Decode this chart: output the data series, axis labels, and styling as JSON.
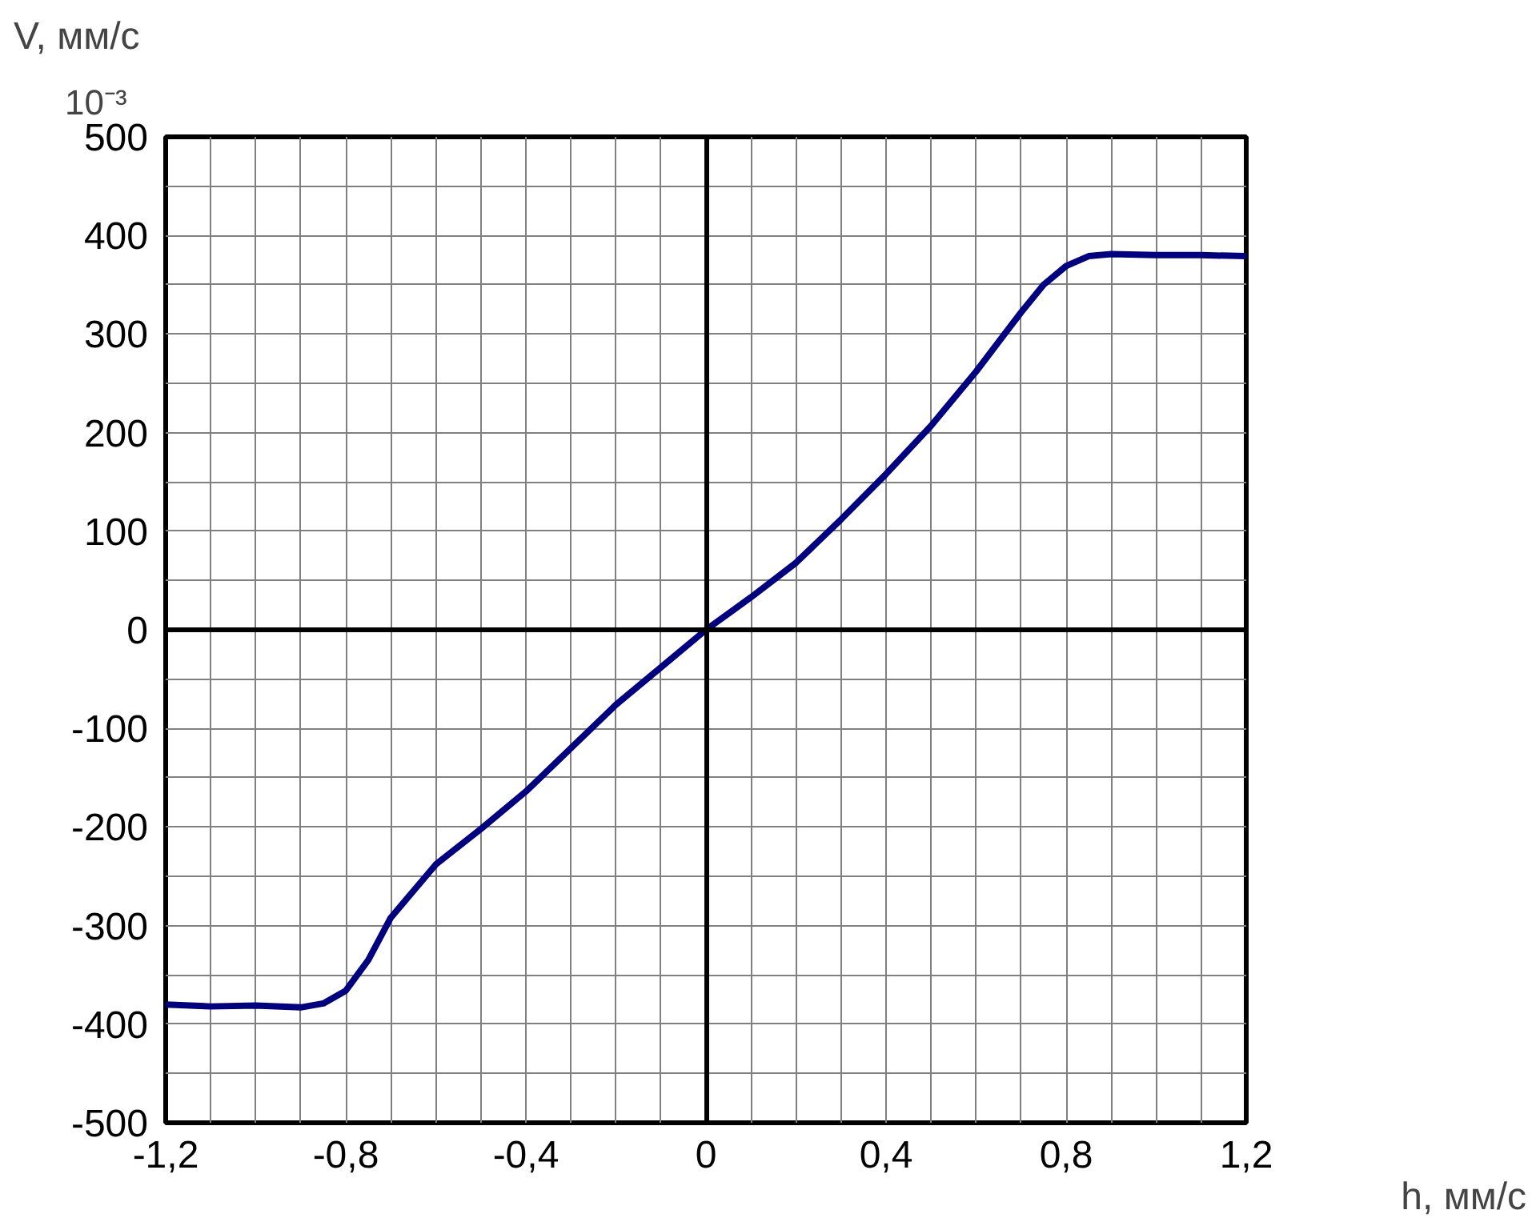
{
  "chart_data": {
    "type": "line",
    "xlabel": "h, мм/с",
    "ylabel": "V, мм/с",
    "annotations": [
      "10⁻³"
    ],
    "x": [
      -1.2,
      -1.1,
      -1.0,
      -0.9,
      -0.85,
      -0.8,
      -0.75,
      -0.7,
      -0.6,
      -0.5,
      -0.4,
      -0.3,
      -0.2,
      -0.1,
      0,
      0.1,
      0.2,
      0.3,
      0.4,
      0.5,
      0.6,
      0.7,
      0.75,
      0.8,
      0.85,
      0.9,
      1.0,
      1.1,
      1.2
    ],
    "series": [
      {
        "color": "#000080",
        "values": [
          -380,
          -382,
          -381,
          -383,
          -379,
          -366,
          -335,
          -292,
          -238,
          -202,
          -164,
          -120,
          -76,
          -38,
          0,
          33,
          68,
          112,
          158,
          207,
          262,
          322,
          350,
          369,
          379,
          381,
          380,
          380,
          379
        ]
      }
    ],
    "xlim": [
      -1.2,
      1.2
    ],
    "ylim": [
      -500,
      500
    ],
    "xticks": [
      {
        "value": -1.2,
        "label": "-1,2"
      },
      {
        "value": -1.1,
        "label": null
      },
      {
        "value": -1.0,
        "label": null
      },
      {
        "value": -0.9,
        "label": null
      },
      {
        "value": -0.8,
        "label": "-0,8"
      },
      {
        "value": -0.7,
        "label": null
      },
      {
        "value": -0.6,
        "label": null
      },
      {
        "value": -0.5,
        "label": null
      },
      {
        "value": -0.4,
        "label": "-0,4"
      },
      {
        "value": -0.3,
        "label": null
      },
      {
        "value": -0.2,
        "label": null
      },
      {
        "value": -0.1,
        "label": null
      },
      0,
      {
        "value": 0.1,
        "label": null
      },
      {
        "value": 0.2,
        "label": null
      },
      {
        "value": 0.3,
        "label": null
      },
      {
        "value": 0.4,
        "label": "0,4"
      },
      {
        "value": 0.5,
        "label": null
      },
      {
        "value": 0.6,
        "label": null
      },
      {
        "value": 0.7,
        "label": null
      },
      {
        "value": 0.8,
        "label": "0,8"
      },
      {
        "value": 0.9,
        "label": null
      },
      {
        "value": 1.0,
        "label": null
      },
      {
        "value": 1.1,
        "label": null
      },
      {
        "value": 1.2,
        "label": "1,2"
      }
    ],
    "yticks": [
      -500,
      {
        "value": -450,
        "label": null
      },
      -400,
      {
        "value": -350,
        "label": null
      },
      -300,
      {
        "value": -250,
        "label": null
      },
      -200,
      {
        "value": -150,
        "label": null
      },
      -100,
      {
        "value": -50,
        "label": null
      },
      0,
      {
        "value": 50,
        "label": null
      },
      100,
      {
        "value": 150,
        "label": null
      },
      200,
      {
        "value": 250,
        "label": null
      },
      300,
      {
        "value": 350,
        "label": null
      },
      400,
      {
        "value": 450,
        "label": null
      },
      500
    ],
    "grid": true,
    "marker": "none",
    "line_style": "solid"
  }
}
